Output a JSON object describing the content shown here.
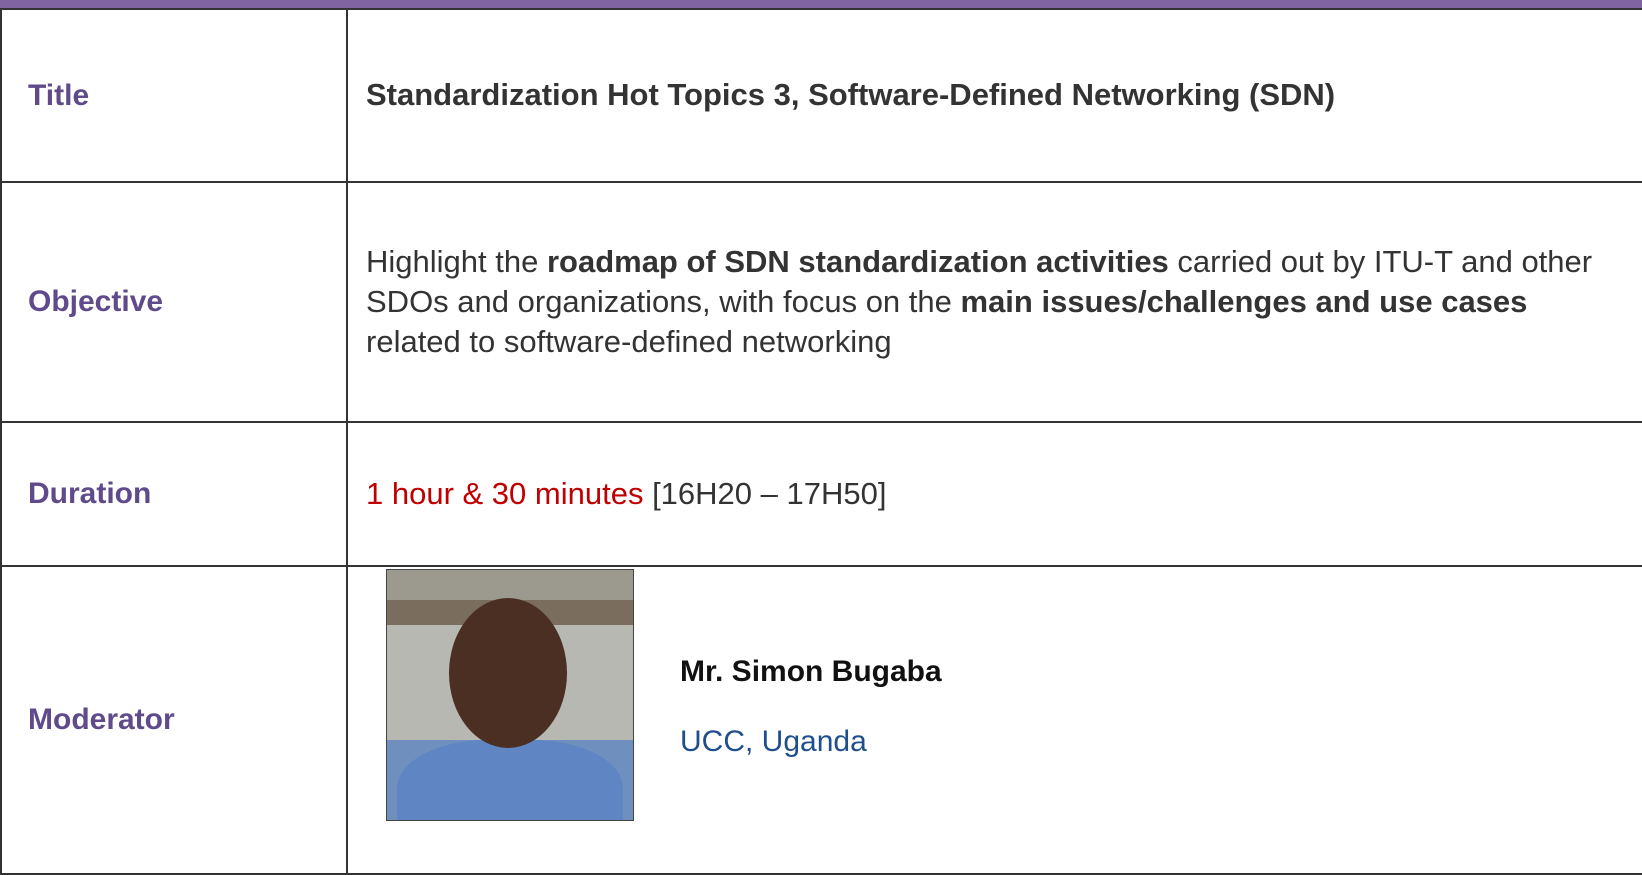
{
  "table": {
    "rows": [
      {
        "label": "Title",
        "content": [
          {
            "text": "Standardization Hot Topics 3, Software-Defined Networking (SDN)",
            "bold": true
          }
        ]
      },
      {
        "label": "Objective",
        "content": [
          {
            "text": "Highlight the "
          },
          {
            "text": "roadmap of SDN standardization activities",
            "bold": true
          },
          {
            "text": " carried out by ITU-T and other SDOs and organizations, with focus on the "
          },
          {
            "text": "main issues/challenges and use cases",
            "bold": true
          },
          {
            "text": " related to software-defined networking"
          }
        ]
      },
      {
        "label": "Duration",
        "content": [
          {
            "text": "1 hour & 30 minutes",
            "color": "#c00000"
          },
          {
            "text": " [16H20 – 17H50]"
          }
        ]
      },
      {
        "label": "Moderator",
        "moderator": {
          "name": "Mr. Simon Bugaba",
          "affiliation": "UCC, Uganda"
        }
      }
    ]
  }
}
